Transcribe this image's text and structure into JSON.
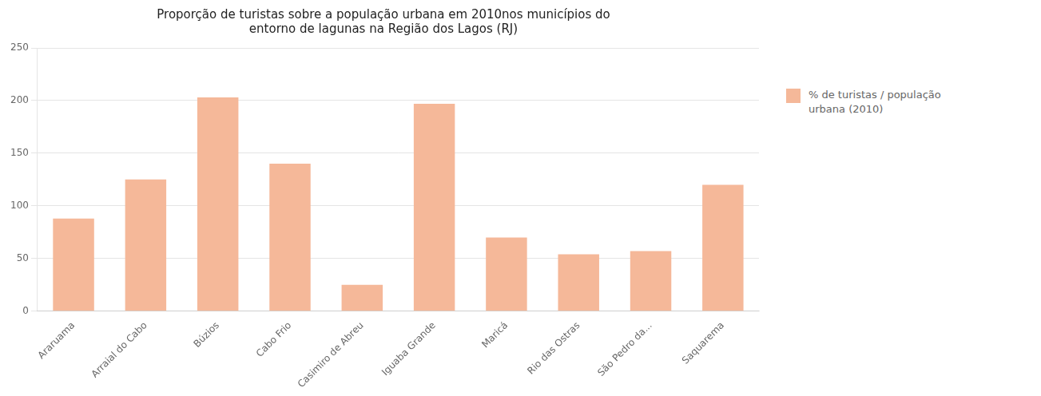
{
  "chart_data": {
    "type": "bar",
    "title": "Proporção de turistas sobre a população urbana em 2010nos municípios do\nentorno de lagunas na Região dos Lagos (RJ)",
    "categories": [
      "Araruama",
      "Arraial do Cabo",
      "Búzios",
      "Cabo Frio",
      "Casimiro de Abreu",
      "Iguaba Grande",
      "Maricá",
      "Rio das Ostras",
      "São Pedro da...",
      "Saquarema"
    ],
    "series": [
      {
        "name": "% de turistas / população\nurbana (2010)",
        "color": "#F5B899",
        "values": [
          88,
          125,
          203,
          140,
          25,
          197,
          70,
          54,
          57,
          120
        ]
      }
    ],
    "ylim": [
      0,
      250
    ],
    "yticks": [
      0,
      50,
      100,
      150,
      200,
      250
    ],
    "grid": true
  }
}
